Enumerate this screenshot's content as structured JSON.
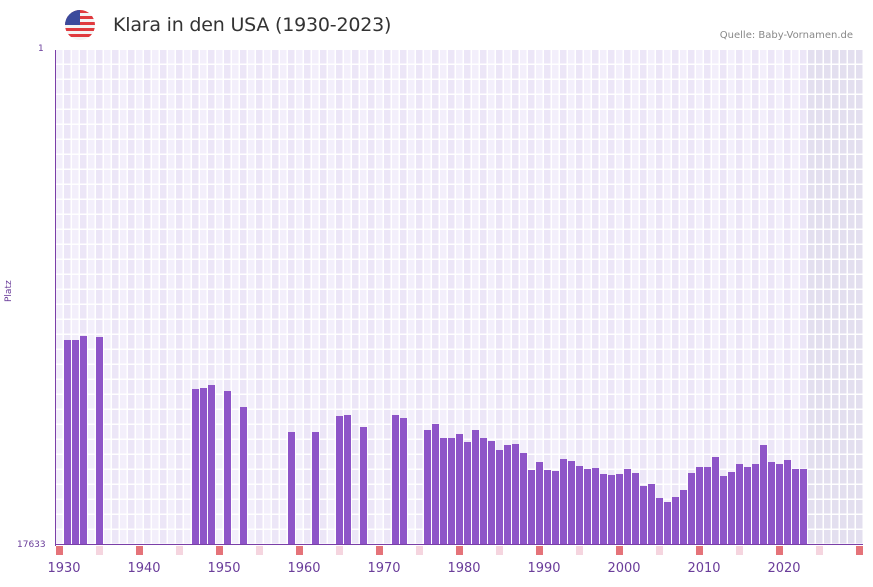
{
  "header": {
    "title": "Klara in den USA (1930-2023)",
    "source": "Quelle: Baby-Vornamen.de",
    "flag_icon": "usa-flag-icon"
  },
  "colors": {
    "bar": "#8e55c8",
    "axis": "#7b3fa8",
    "grid_a": "#f3effb",
    "grid_b": "#ece6f7",
    "future": "#e3dfef",
    "marker_red": "#e57379",
    "marker_pink": "#f5d5df"
  },
  "chart_data": {
    "type": "bar",
    "title": "Klara in den USA (1930-2023)",
    "xlabel": "",
    "ylabel": "Platz",
    "y_inverted": true,
    "ylim": [
      17633,
      1
    ],
    "y_tick_labels": [
      "1",
      "17633"
    ],
    "x_tick_labels": [
      "1930",
      "1940",
      "1950",
      "1960",
      "1970",
      "1980",
      "1990",
      "2000",
      "2010",
      "2020"
    ],
    "grid": true,
    "first_column_year": 1929,
    "last_column_year": 2029,
    "future_shaded_from": 2023,
    "categories": [
      1930,
      1931,
      1932,
      1934,
      1946,
      1947,
      1948,
      1950,
      1952,
      1958,
      1961,
      1964,
      1965,
      1967,
      1971,
      1972,
      1975,
      1976,
      1977,
      1978,
      1979,
      1980,
      1981,
      1982,
      1983,
      1984,
      1985,
      1986,
      1987,
      1988,
      1989,
      1990,
      1991,
      1992,
      1993,
      1994,
      1995,
      1996,
      1997,
      1998,
      1999,
      2000,
      2001,
      2002,
      2003,
      2004,
      2005,
      2006,
      2007,
      2008,
      2009,
      2010,
      2011,
      2012,
      2013,
      2014,
      2015,
      2016,
      2017,
      2018,
      2019,
      2020,
      2021,
      2022
    ],
    "values": [
      10332,
      10332,
      10190,
      10225,
      12077,
      12041,
      11934,
      12148,
      12718,
      13608,
      13608,
      13038,
      13002,
      13430,
      13002,
      13109,
      13537,
      13323,
      13822,
      13822,
      13679,
      13964,
      13537,
      13822,
      13929,
      14249,
      14071,
      14036,
      14356,
      14961,
      14676,
      14961,
      14997,
      14569,
      14640,
      14818,
      14925,
      14890,
      15103,
      15139,
      15103,
      14925,
      15068,
      15531,
      15460,
      15958,
      16101,
      15923,
      15674,
      15068,
      14854,
      14854,
      14498,
      15175,
      15032,
      14747,
      14854,
      14747,
      14071,
      14676,
      14747,
      14605,
      14925,
      14925
    ]
  }
}
